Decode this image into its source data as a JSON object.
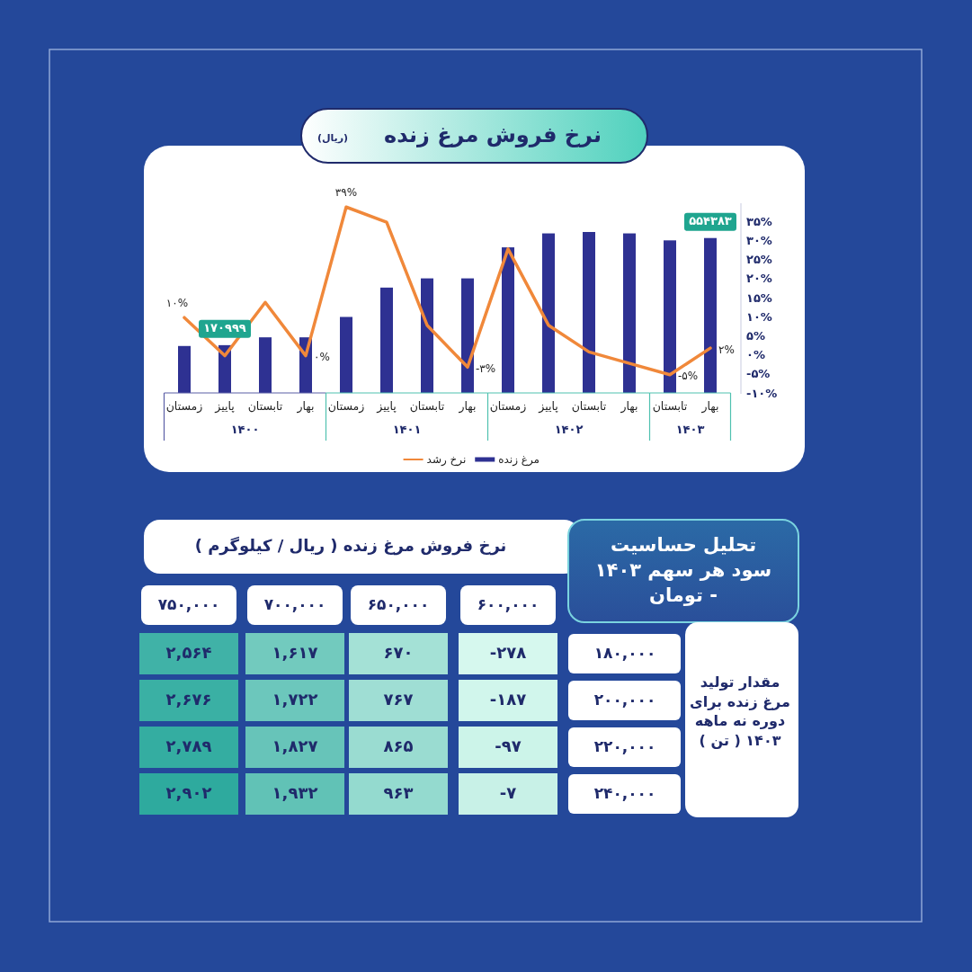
{
  "chart_data": [
    {
      "type": "bar",
      "title": "نرخ فروش مرغ  زنده",
      "subtitle": "(ریال)",
      "categories": [
        "زمستان",
        "پاییز",
        "تابستان",
        "بهار",
        "زمستان",
        "پاییز",
        "تابستان",
        "بهار",
        "زمستان",
        "پاییز",
        "تابستان",
        "بهار",
        "تابستان",
        "بهار"
      ],
      "annotations": [
        "۱۴۰۰",
        "۱۴۰۱",
        "۱۴۰۲",
        "۱۴۰۳"
      ],
      "series": [
        {
          "name": "مرغ زنده",
          "type": "bar",
          "color": "#2e3192",
          "values": [
            168000,
            170999,
            199000,
            199000,
            272000,
            377000,
            410000,
            410000,
            521000,
            571000,
            576000,
            571000,
            546000,
            554383
          ],
          "value_labels": [
            null,
            "۱۷۰۹۹۹",
            null,
            null,
            null,
            null,
            null,
            null,
            null,
            null,
            null,
            null,
            null,
            "۵۵۴۳۸۳"
          ]
        },
        {
          "name": "نرخ رشد",
          "type": "line",
          "axis": "y2",
          "color": "#f0883a",
          "values": [
            10,
            0,
            14,
            0,
            39,
            35,
            8,
            -3,
            28,
            8,
            1,
            -2,
            -5,
            2
          ],
          "value_labels": [
            "۱۰%",
            null,
            null,
            "۰%",
            "۳۹%",
            null,
            null,
            "-۳%",
            null,
            null,
            null,
            null,
            "-۵%",
            "۲%"
          ]
        }
      ],
      "y2lim": [
        -10,
        40
      ],
      "y2ticks": [
        {
          "value": 35,
          "label": "۳۵%"
        },
        {
          "value": 30,
          "label": "۳۰%"
        },
        {
          "value": 25,
          "label": "۲۵%"
        },
        {
          "value": 20,
          "label": "۲۰%"
        },
        {
          "value": 15,
          "label": "۱۵%"
        },
        {
          "value": 10,
          "label": "۱۰%"
        },
        {
          "value": 5,
          "label": "۵%"
        },
        {
          "value": 0,
          "label": "۰%"
        },
        {
          "value": -5,
          "label": "-۵%"
        },
        {
          "value": -10,
          "label": "-۱۰%"
        }
      ],
      "legend": "bottom",
      "grid": false,
      "marker": "none"
    },
    {
      "type": "heatmap",
      "title": "تحلیل حساسیت سود هر سهم ۱۴۰۳ - تومان",
      "xlabel": "نرخ فروش مرغ زنده ( ریال / کیلوگرم )",
      "ylabel": "مقدار تولید مرغ زنده برای دوره نه ماهه ۱۴۰۳ ( تن )",
      "categories": [
        "۷۵۰,۰۰۰",
        "۷۰۰,۰۰۰",
        "۶۵۰,۰۰۰",
        "۶۰۰,۰۰۰"
      ],
      "y_categories": [
        "۱۸۰,۰۰۰",
        "۲۰۰,۰۰۰",
        "۲۲۰,۰۰۰",
        "۲۴۰,۰۰۰"
      ],
      "cells": [
        [
          2564,
          1617,
          670,
          -278
        ],
        [
          2676,
          1722,
          767,
          -187
        ],
        [
          2789,
          1827,
          865,
          -97
        ],
        [
          2902,
          1932,
          963,
          -7
        ]
      ],
      "cell_labels": [
        [
          "۲,۵۶۴",
          "۱,۶۱۷",
          "۶۷۰",
          "-۲۷۸"
        ],
        [
          "۲,۶۷۶",
          "۱,۷۲۲",
          "۷۶۷",
          "-۱۸۷"
        ],
        [
          "۲,۷۸۹",
          "۱,۸۲۷",
          "۸۶۵",
          "-۹۷"
        ],
        [
          "۲,۹۰۲",
          "۱,۹۳۲",
          "۹۶۳",
          "-۷"
        ]
      ]
    }
  ]
}
